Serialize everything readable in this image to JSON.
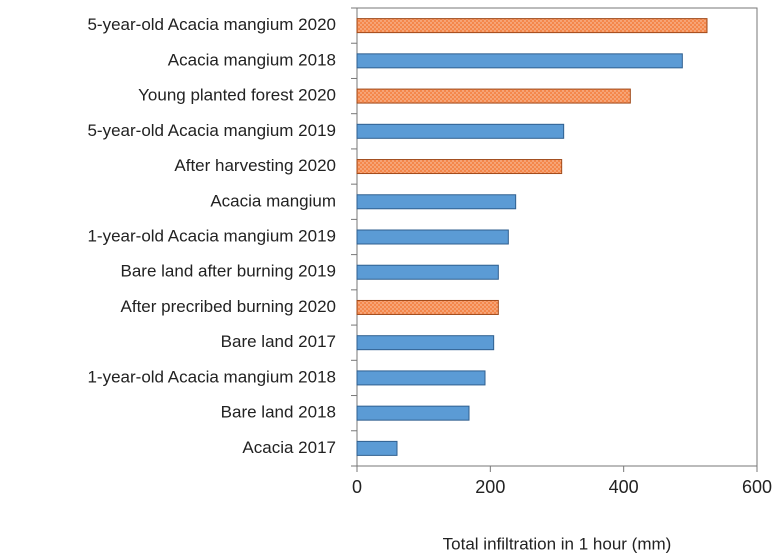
{
  "chart_data": {
    "type": "barh",
    "categories": [
      "5-year-old Acacia mangium 2020",
      "Acacia mangium 2018",
      "Young planted forest 2020",
      "5-year-old Acacia mangium 2019",
      "After harvesting 2020",
      "Acacia mangium",
      "1-year-old Acacia mangium 2019",
      "Bare land after burning 2019",
      "After precribed burning 2020",
      "Bare land 2017",
      "1-year-old Acacia mangium 2018",
      "Bare land 2018",
      "Acacia 2017"
    ],
    "values": [
      525,
      488,
      410,
      310,
      307,
      238,
      227,
      212,
      212,
      205,
      192,
      168,
      60
    ],
    "colors": [
      "#f4874b",
      "#5b9bd5",
      "#f4874b",
      "#5b9bd5",
      "#f4874b",
      "#5b9bd5",
      "#5b9bd5",
      "#5b9bd5",
      "#f4874b",
      "#5b9bd5",
      "#5b9bd5",
      "#5b9bd5",
      "#5b9bd5"
    ],
    "xlabel": "Total infiltration in 1 hour (mm)",
    "xlim": [
      0,
      600
    ],
    "xticks": [
      0,
      200,
      400,
      600
    ],
    "grid": false
  }
}
